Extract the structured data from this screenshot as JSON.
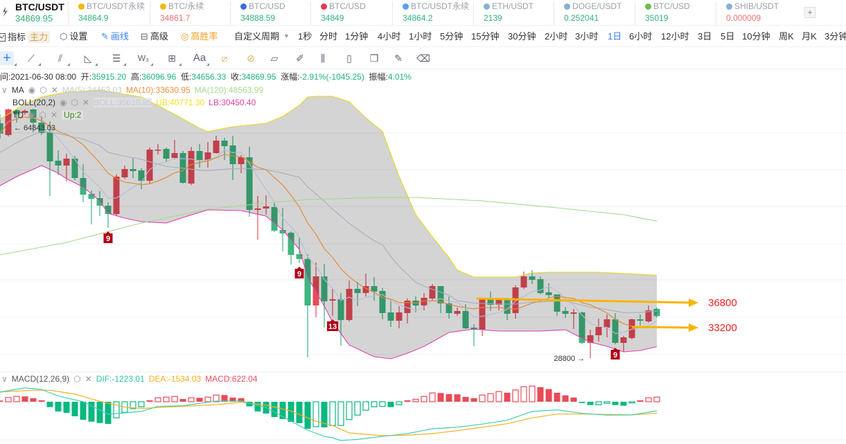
{
  "ticker": {
    "main": {
      "symbol": "BTC/USDT",
      "price": "34869.95"
    },
    "items": [
      {
        "symbol": "BTC/USDT永续",
        "price": "34864.9",
        "dir": "up",
        "icon": "binance-icon",
        "color": "#f0b90b"
      },
      {
        "symbol": "BTC/永续",
        "price": "34861.7",
        "dir": "down",
        "icon": "binance-icon",
        "color": "#f0b90b"
      },
      {
        "symbol": "BTC/USD",
        "price": "34888.59",
        "dir": "up",
        "icon": "coinbase-icon",
        "color": "#3b6fe0"
      },
      {
        "symbol": "BTC/USD",
        "price": "34849",
        "dir": "up",
        "icon": "bitfinex-icon",
        "color": "#e8384f"
      },
      {
        "symbol": "BTC/USDT永续",
        "price": "34864.2",
        "dir": "up",
        "icon": "diamond-icon",
        "color": "#5aa0f0"
      },
      {
        "symbol": "ETH/USDT",
        "price": "2139",
        "dir": "up",
        "icon": "drop-icon",
        "color": "#8ab0d0"
      },
      {
        "symbol": "DOGE/USDT",
        "price": "0.252041",
        "dir": "up",
        "icon": "drop-icon",
        "color": "#8ab0d0"
      },
      {
        "symbol": "BTC/USD",
        "price": "35019",
        "dir": "up",
        "icon": "leaf-icon",
        "color": "#6cbf4a"
      },
      {
        "symbol": "SHIB/USDT",
        "price": "0.000009",
        "dir": "down",
        "icon": "drop-icon",
        "color": "#8ab0d0"
      }
    ],
    "add_label": "+"
  },
  "toolbar": {
    "indicator": "指标",
    "indicator_badge": "主力",
    "settings": "设置",
    "draw": "画线",
    "advanced": "高级",
    "win_rate": "高胜率",
    "custom_period": "自定义周期",
    "periods": [
      "1秒",
      "分时",
      "1分钟",
      "4小时",
      "1小时",
      "5分钟",
      "15分钟",
      "30分钟",
      "2小时",
      "3小时",
      "1日",
      "6小时",
      "12小时",
      "3日",
      "5日",
      "10分钟",
      "周K",
      "月K",
      "3分钟"
    ],
    "active_period": "1日"
  },
  "draw_tools": [
    "crosshair",
    "trend-line",
    "parallel-channel",
    "triangle",
    "horizontal-lines",
    "wave",
    "box",
    "text",
    "measure",
    "measure-circle",
    "ruler",
    "brush",
    "candles",
    "lock",
    "copy",
    "edit",
    "trash"
  ],
  "info": {
    "time_label": "时间:",
    "time": "2021-06-30 08:00",
    "open_label": "开:",
    "open": "35915.20",
    "high_label": "高:",
    "high": "36096.96",
    "low_label": "低:",
    "low": "34656.33",
    "close_label": "收:",
    "close": "34869.95",
    "change_label": "涨幅:",
    "change": "-2.91%(-1045.25)",
    "amp_label": "振幅:",
    "amp": "4.01%"
  },
  "legend": {
    "ma": {
      "name": "MA",
      "ma5": "MA(5):34453.03",
      "ma10": "MA(10):33630.95",
      "ma120": "MA(120):48563.99"
    },
    "boll": {
      "name": "BOLL(20,2)",
      "mid": "BOLL:35610.85",
      "ub": "UB:40771.30",
      "lb": "LB:30450.40"
    },
    "td": {
      "name": "TD",
      "up": "Up:2"
    },
    "macd": {
      "name": "MACD(12,26,9)",
      "dif": "DIF:-1223.01",
      "dea": "DEA:-1534.03",
      "macd": "MACD:622.04"
    }
  },
  "colors": {
    "up": "#e84b57",
    "down": "#3fb57f",
    "ma5": "#b8bcd8",
    "ma10": "#e8862a",
    "ma120": "#a8d88a",
    "boll_mid": "#a8acc0",
    "ub": "#e6d820",
    "lb": "#e040b0",
    "band": "#c8c8c8",
    "dif": "#40d0b0",
    "dea": "#f5b020",
    "arrow": "#f8b400",
    "label_red": "#f02020",
    "accent": "#3b7ff0"
  },
  "chart_data": {
    "type": "candlestick",
    "candles_ohlc": [
      [
        62700,
        64000,
        60500,
        61200
      ],
      [
        61000,
        64843.03,
        60800,
        64700
      ],
      [
        64600,
        64800,
        62800,
        64000
      ],
      [
        64200,
        64700,
        63900,
        64500
      ],
      [
        64700,
        64800,
        61400,
        62800
      ],
      [
        62800,
        63700,
        61000,
        61300
      ],
      [
        61400,
        63000,
        52200,
        57200
      ],
      [
        57300,
        58800,
        55200,
        56600
      ],
      [
        56600,
        58300,
        54300,
        57600
      ],
      [
        57600,
        58000,
        54500,
        54800
      ],
      [
        54800,
        56800,
        51300,
        52400
      ],
      [
        52500,
        53000,
        48100,
        51800
      ],
      [
        51900,
        52900,
        49300,
        50800
      ],
      [
        50800,
        51300,
        47600,
        49600
      ],
      [
        49600,
        55300,
        49300,
        55000
      ],
      [
        54900,
        56600,
        54700,
        56100
      ],
      [
        56100,
        57600,
        54800,
        55800
      ],
      [
        55900,
        56200,
        53200,
        54400
      ],
      [
        54400,
        59200,
        54000,
        58900
      ],
      [
        58800,
        59700,
        58200,
        58900
      ],
      [
        59000,
        59200,
        57200,
        57600
      ],
      [
        57700,
        60300,
        57500,
        58400
      ],
      [
        58400,
        58700,
        54000,
        54100
      ],
      [
        54000,
        59300,
        53800,
        58700
      ],
      [
        58700,
        59700,
        56300,
        57400
      ],
      [
        57400,
        60000,
        56300,
        58500
      ],
      [
        58400,
        60900,
        58300,
        60200
      ],
      [
        60200,
        60600,
        57400,
        59400
      ],
      [
        59500,
        60900,
        54500,
        56800
      ],
      [
        56800,
        58100,
        55500,
        57800
      ],
      [
        57800,
        59300,
        49200,
        50200
      ],
      [
        50200,
        52200,
        45900,
        50400
      ],
      [
        50400,
        52300,
        49500,
        50700
      ],
      [
        50600,
        51200,
        47000,
        47200
      ],
      [
        47300,
        50500,
        44200,
        46800
      ],
      [
        46900,
        47100,
        42300,
        43700
      ],
      [
        43800,
        46200,
        42500,
        43100
      ],
      [
        43100,
        43800,
        28900,
        36400
      ],
      [
        36400,
        42600,
        34700,
        40600
      ],
      [
        40600,
        42400,
        33200,
        37000
      ],
      [
        37100,
        38800,
        34900,
        37300
      ],
      [
        37300,
        38200,
        30600,
        34300
      ],
      [
        34300,
        40000,
        34100,
        38800
      ],
      [
        38800,
        39800,
        36300,
        38200
      ],
      [
        38200,
        41000,
        37700,
        39200
      ],
      [
        39200,
        40500,
        37100,
        38400
      ],
      [
        38500,
        38900,
        34400,
        35300
      ],
      [
        35400,
        37200,
        33300,
        34200
      ],
      [
        34200,
        36300,
        33100,
        35400
      ],
      [
        35300,
        37400,
        33800,
        37100
      ],
      [
        37100,
        37700,
        35400,
        36400
      ],
      [
        36400,
        38200,
        35700,
        37500
      ],
      [
        37400,
        39500,
        37200,
        39200
      ],
      [
        39200,
        39200,
        35300,
        36700
      ],
      [
        36700,
        37700,
        34500,
        35300
      ],
      [
        35200,
        36100,
        34900,
        35600
      ],
      [
        35600,
        36600,
        33000,
        33100
      ],
      [
        33200,
        33700,
        30500,
        32900
      ],
      [
        32900,
        37500,
        32000,
        37300
      ],
      [
        37300,
        38400,
        35600,
        36500
      ],
      [
        36500,
        37500,
        35700,
        37200
      ],
      [
        37200,
        37500,
        34300,
        35200
      ],
      [
        35300,
        39300,
        34500,
        39000
      ],
      [
        39000,
        41300,
        38800,
        40600
      ],
      [
        40600,
        41500,
        39500,
        40100
      ],
      [
        40200,
        40600,
        38000,
        38200
      ],
      [
        38300,
        39600,
        37500,
        37900
      ],
      [
        38000,
        38000,
        34900,
        35500
      ],
      [
        35600,
        36200,
        34600,
        35200
      ],
      [
        35200,
        35900,
        33000,
        35400
      ],
      [
        35400,
        35500,
        30800,
        31000
      ],
      [
        31000,
        32900,
        28800,
        32100
      ],
      [
        32100,
        34500,
        31200,
        33300
      ],
      [
        33200,
        35100,
        31800,
        34400
      ],
      [
        34400,
        35300,
        30800,
        31000
      ],
      [
        31000,
        32000,
        29700,
        31800
      ],
      [
        31700,
        34500,
        31500,
        34400
      ],
      [
        34400,
        35100,
        33500,
        34200
      ],
      [
        34100,
        36400,
        33900,
        35700
      ],
      [
        35915.2,
        36096.96,
        34656.33,
        34869.95
      ]
    ],
    "boll_ub": [
      [
        0,
        63300
      ],
      [
        3,
        65500
      ],
      [
        5,
        66500
      ],
      [
        8,
        67200
      ],
      [
        12,
        67500
      ],
      [
        17,
        66500
      ],
      [
        21,
        64000
      ],
      [
        24,
        62000
      ],
      [
        25,
        61500
      ],
      [
        28,
        62200
      ],
      [
        32,
        62700
      ],
      [
        34,
        63700
      ],
      [
        36,
        65300
      ],
      [
        37,
        66500
      ],
      [
        38,
        66600
      ],
      [
        40,
        66600
      ],
      [
        42,
        65800
      ],
      [
        44,
        63500
      ],
      [
        46,
        61500
      ],
      [
        48,
        55000
      ],
      [
        49,
        52300
      ],
      [
        50,
        49500
      ],
      [
        52,
        46300
      ],
      [
        54,
        43300
      ],
      [
        55,
        41500
      ],
      [
        57,
        40500
      ],
      [
        62,
        40500
      ],
      [
        64,
        41100
      ],
      [
        66,
        41200
      ],
      [
        72,
        41200
      ],
      [
        79,
        40771.3
      ]
    ],
    "boll_lb": [
      [
        0,
        53700
      ],
      [
        2,
        55000
      ],
      [
        5,
        56600
      ],
      [
        7,
        55500
      ],
      [
        8,
        54700
      ],
      [
        10,
        53500
      ],
      [
        12,
        51500
      ],
      [
        13,
        49700
      ],
      [
        15,
        49000
      ],
      [
        17,
        48500
      ],
      [
        20,
        48300
      ],
      [
        22,
        49100
      ],
      [
        25,
        50200
      ],
      [
        29,
        50100
      ],
      [
        32,
        49300
      ],
      [
        34,
        47300
      ],
      [
        36,
        44500
      ],
      [
        37,
        40500
      ],
      [
        39,
        36300
      ],
      [
        40,
        34000
      ],
      [
        42,
        30700
      ],
      [
        45,
        29000
      ],
      [
        47,
        28700
      ],
      [
        49,
        29500
      ],
      [
        51,
        30500
      ],
      [
        54,
        32500
      ],
      [
        57,
        33000
      ],
      [
        60,
        32700
      ],
      [
        65,
        32700
      ],
      [
        68,
        32900
      ],
      [
        69,
        32300
      ],
      [
        71,
        31100
      ],
      [
        73,
        30500
      ],
      [
        75,
        29700
      ],
      [
        77,
        29900
      ],
      [
        79,
        30450.4
      ]
    ],
    "ma120": [
      [
        0,
        43700
      ],
      [
        8,
        45500
      ],
      [
        17,
        48300
      ],
      [
        25,
        50300
      ],
      [
        33,
        51300
      ],
      [
        37,
        51700
      ],
      [
        46,
        52000
      ],
      [
        50,
        52000
      ],
      [
        58,
        51500
      ],
      [
        67,
        50500
      ],
      [
        75,
        49500
      ],
      [
        79,
        48563.99
      ]
    ],
    "td_marks": [
      {
        "index": 13,
        "label": "9"
      },
      {
        "index": 36,
        "label": "9"
      },
      {
        "index": 40,
        "label": "13"
      },
      {
        "index": 74,
        "label": "9"
      }
    ],
    "price_labels": [
      {
        "index": 1,
        "text": "← 64843.03",
        "price": 64843.03,
        "side": "right"
      },
      {
        "index": 71,
        "text": "28800 →",
        "price": 28800,
        "side": "left"
      }
    ],
    "arrows": [
      {
        "from_index": 57.3,
        "from_price": 37400,
        "to_index": 84,
        "to_price": 36800,
        "label": "36800"
      },
      {
        "from_index": 76,
        "from_price": 33300,
        "to_index": 84,
        "to_price": 33200,
        "label": "33200"
      }
    ],
    "macd_hist": [
      160,
      560,
      720,
      720,
      470,
      190,
      -720,
      -1300,
      -1490,
      -1950,
      -2420,
      -2670,
      -2850,
      -2980,
      -2170,
      -1420,
      -930,
      -680,
      190,
      530,
      620,
      720,
      370,
      530,
      530,
      620,
      900,
      900,
      560,
      470,
      -620,
      -1300,
      -1580,
      -2050,
      -2330,
      -2700,
      -2880,
      -3630,
      -3350,
      -3440,
      -3190,
      -3180,
      -2390,
      -1790,
      -1140,
      -680,
      -620,
      -720,
      -400,
      190,
      340,
      720,
      1180,
      1170,
      1020,
      1000,
      650,
      470,
      900,
      1090,
      1370,
      1210,
      1580,
      2020,
      2110,
      1950,
      1700,
      1210,
      860,
      560,
      -160,
      -440,
      -400,
      -210,
      -440,
      -530,
      -160,
      190,
      530,
      622.04
    ],
    "dif": [
      [
        0,
        1302
      ],
      [
        3,
        1860
      ],
      [
        5,
        1646
      ],
      [
        7,
        772
      ],
      [
        10,
        0
      ],
      [
        13,
        -1674
      ],
      [
        17,
        -1302
      ],
      [
        19,
        -623
      ],
      [
        22,
        -530
      ],
      [
        26,
        93
      ],
      [
        29,
        93
      ],
      [
        32,
        -772
      ],
      [
        35,
        -2604
      ],
      [
        37,
        -3813
      ],
      [
        39,
        -4650
      ],
      [
        40,
        -4836
      ],
      [
        41,
        -5208
      ],
      [
        43,
        -5050
      ],
      [
        46,
        -4650
      ],
      [
        49,
        -4278
      ],
      [
        52,
        -3627
      ],
      [
        55,
        -3413
      ],
      [
        58,
        -3004
      ],
      [
        61,
        -2483
      ],
      [
        64,
        -1302
      ],
      [
        67,
        -1088
      ],
      [
        70,
        -1553
      ],
      [
        73,
        -1795
      ],
      [
        76,
        -1767
      ],
      [
        79,
        -1223.01
      ]
    ],
    "dea": [
      [
        0,
        1302
      ],
      [
        4,
        1553
      ],
      [
        6,
        1553
      ],
      [
        9,
        1023
      ],
      [
        12,
        65
      ],
      [
        15,
        -716
      ],
      [
        17,
        -902
      ],
      [
        20,
        -716
      ],
      [
        26,
        -400
      ],
      [
        29,
        -65
      ],
      [
        32,
        -465
      ],
      [
        35,
        -1237
      ],
      [
        38,
        -2632
      ],
      [
        40,
        -3190
      ],
      [
        42,
        -4185
      ],
      [
        46,
        -4557
      ],
      [
        49,
        -4492
      ],
      [
        52,
        -4278
      ],
      [
        55,
        -3878
      ],
      [
        58,
        -3413
      ],
      [
        61,
        -2948
      ],
      [
        64,
        -2167
      ],
      [
        67,
        -1646
      ],
      [
        70,
        -1646
      ],
      [
        73,
        -1702
      ],
      [
        76,
        -1767
      ],
      [
        79,
        -1534.03
      ]
    ]
  }
}
